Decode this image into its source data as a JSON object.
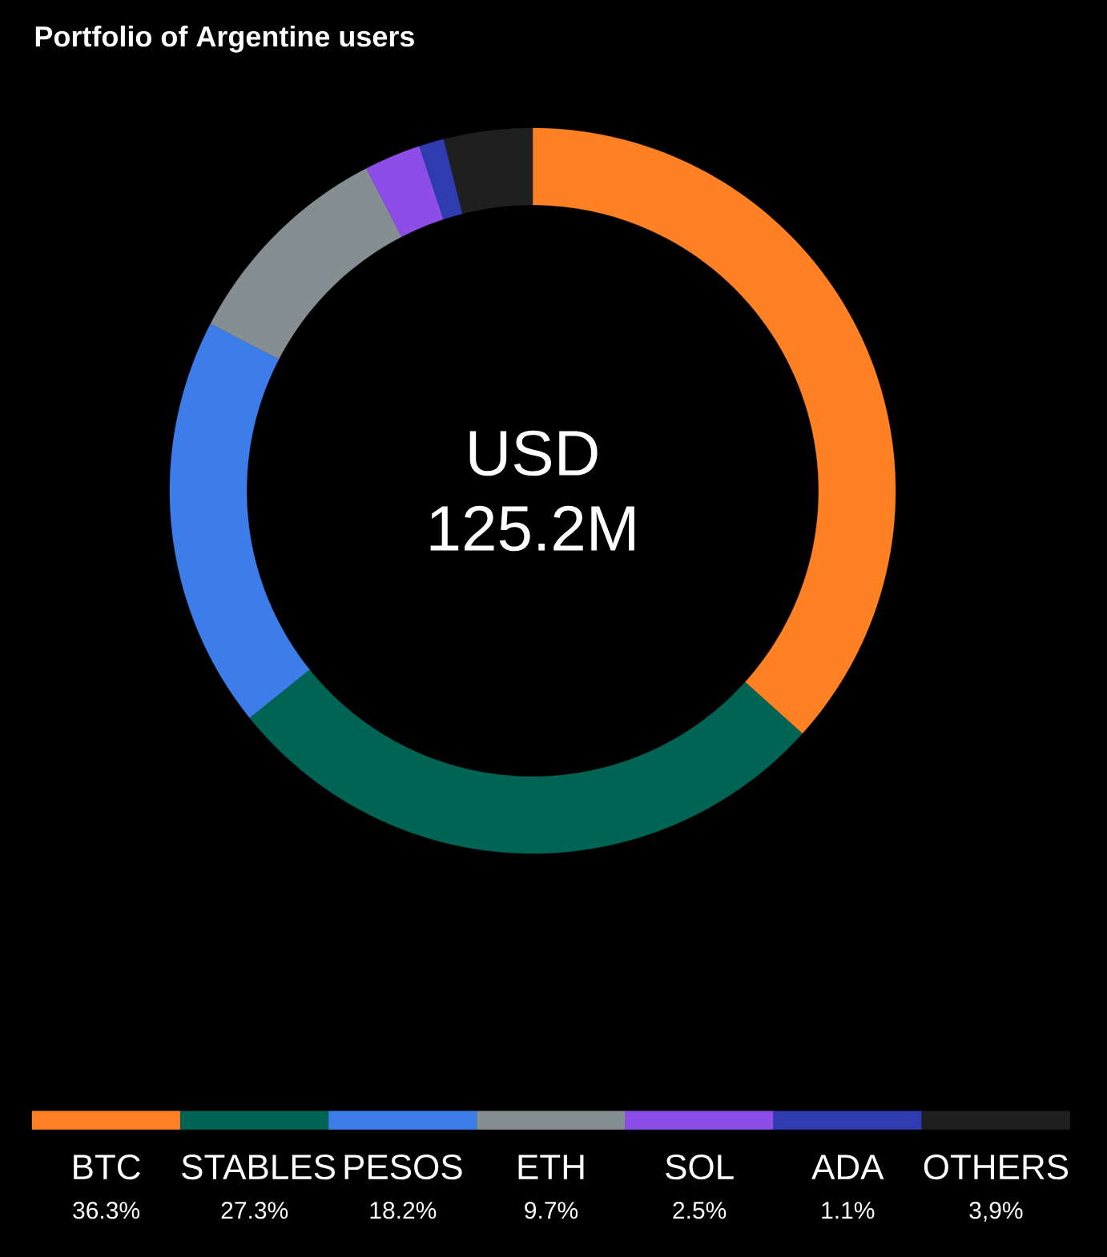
{
  "chart_data": {
    "type": "donut",
    "title": "Portfolio of Argentine users",
    "categories": [
      "BTC",
      "STABLES",
      "PESOS",
      "ETH",
      "SOL",
      "ADA",
      "OTHERS"
    ],
    "values": [
      36.3,
      27.3,
      18.2,
      9.7,
      2.5,
      1.1,
      3.9
    ],
    "value_labels": [
      "36.3%",
      "27.3%",
      "18.2%",
      "9.7%",
      "2.5%",
      "1.1%",
      "3,9%"
    ],
    "colors": [
      "#ff8124",
      "#006455",
      "#3d7dea",
      "#858f93",
      "#8e4de6",
      "#2e3cb0",
      "#1f1f1f"
    ],
    "legend": "bottom",
    "annotations": [
      "USD",
      "125.2M"
    ]
  }
}
